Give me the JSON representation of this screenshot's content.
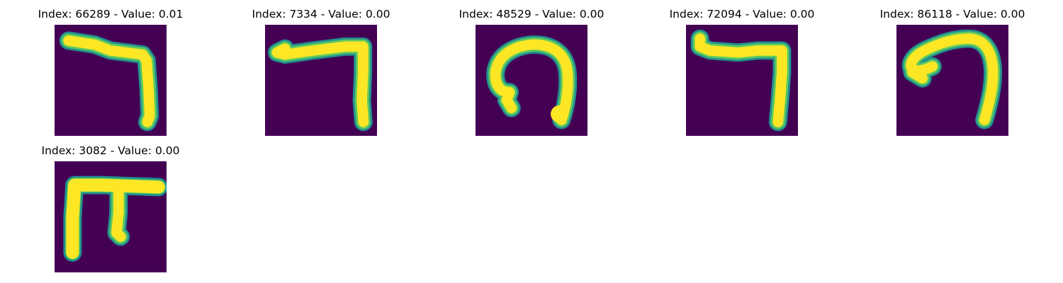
{
  "colors": {
    "background": "#440154",
    "stroke_edge": "#21908d",
    "stroke_mid": "#5ec962",
    "stroke_core": "#fde725"
  },
  "panels": [
    {
      "title": "Index: 66289 - Value: 0.01",
      "glyph": "reversed-seven"
    },
    {
      "title": "Index: 7334 - Value: 0.00",
      "glyph": "reversed-seven"
    },
    {
      "title": "Index: 48529 - Value: 0.00",
      "glyph": "open-loop"
    },
    {
      "title": "Index: 72094 - Value: 0.00",
      "glyph": "reversed-seven"
    },
    {
      "title": "Index: 86118 - Value: 0.00",
      "glyph": "hook"
    },
    {
      "title": "Index: 3082 - Value: 0.00",
      "glyph": "pi-shape"
    }
  ]
}
